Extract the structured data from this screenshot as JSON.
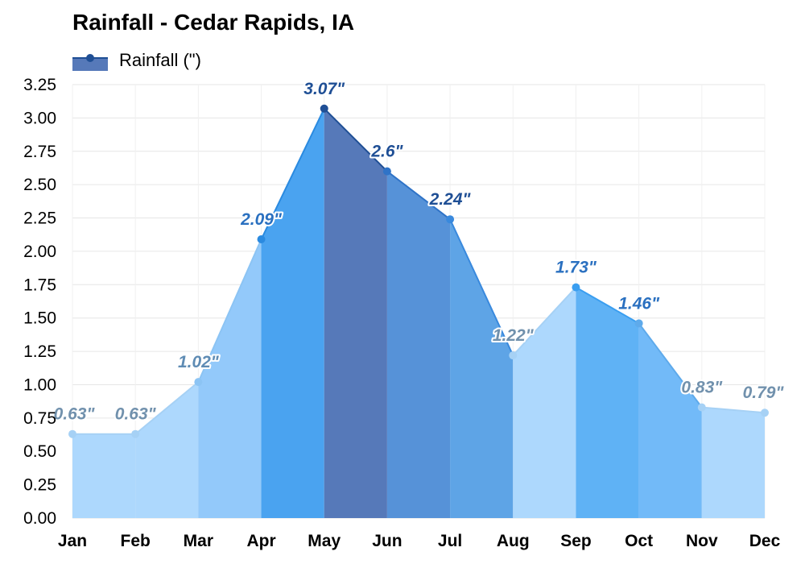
{
  "chart_data": {
    "type": "area",
    "title": "Rainfall - Cedar Rapids, IA",
    "xlabel": "",
    "ylabel": "",
    "categories": [
      "Jan",
      "Feb",
      "Mar",
      "Apr",
      "May",
      "Jun",
      "Jul",
      "Aug",
      "Sep",
      "Oct",
      "Nov",
      "Dec"
    ],
    "series": [
      {
        "name": "Rainfall (\")",
        "values": [
          0.63,
          0.63,
          1.02,
          2.09,
          3.07,
          2.6,
          2.24,
          1.22,
          1.73,
          1.46,
          0.83,
          0.79
        ],
        "data_labels": [
          "0.63\"",
          "0.63\"",
          "1.02\"",
          "2.09\"",
          "3.07\"",
          "2.6\"",
          "2.24\"",
          "1.22\"",
          "1.73\"",
          "1.46\"",
          "0.83\"",
          "0.79\""
        ]
      }
    ],
    "ylim": [
      0,
      3.25
    ],
    "yticks": [
      "0.00",
      "0.25",
      "0.50",
      "0.75",
      "1.00",
      "1.25",
      "1.50",
      "1.75",
      "2.00",
      "2.25",
      "2.50",
      "2.75",
      "3.00",
      "3.25"
    ],
    "grid": true,
    "legend_position": "top-left",
    "colors": {
      "segment_fill": [
        "#add8fd",
        "#add8fd",
        "#93c9fa",
        "#4aa3f0",
        "#5679b9",
        "#5692d8",
        "#5ea4e6",
        "#add8fd",
        "#5fb2f5",
        "#72baf8",
        "#add8fd",
        "#add8fd"
      ],
      "point": [
        "#a6d1f5",
        "#a6d1f5",
        "#8cc4f4",
        "#2a8ae0",
        "#1f4f95",
        "#2f73c7",
        "#3989dd",
        "#a6d1f5",
        "#3a9ef0",
        "#5eaaeb",
        "#a6d1f5",
        "#a6d1f5"
      ],
      "label": [
        "#7191ad",
        "#7191ad",
        "#5f8cb4",
        "#2a70c0",
        "#1f4f95",
        "#1f4f95",
        "#1f4f95",
        "#7191ad",
        "#2a70c0",
        "#2a70c0",
        "#7191ad",
        "#7191ad"
      ],
      "legend_swatch": "#5679b9",
      "legend_point": "#1f4f95",
      "grid": "#e6e6e6"
    }
  }
}
